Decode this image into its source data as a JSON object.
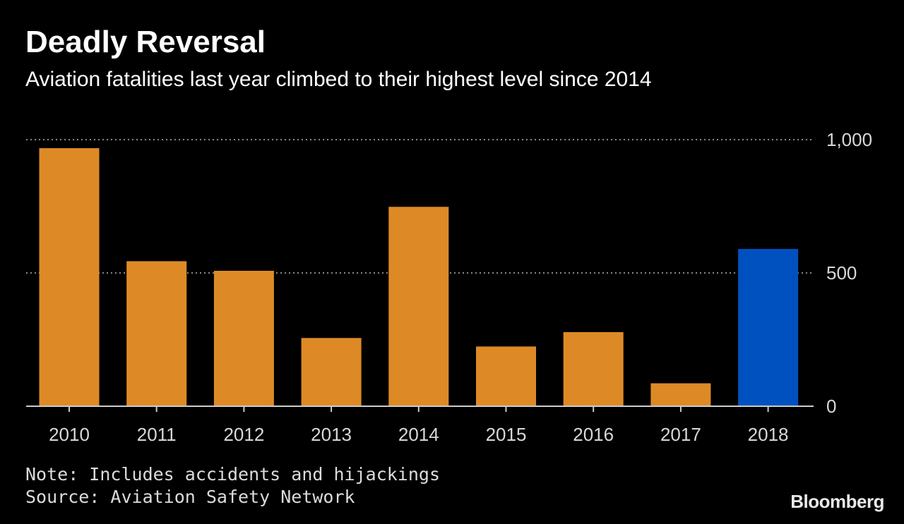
{
  "chart_data": {
    "type": "bar",
    "title": "Deadly Reversal",
    "subtitle": "Aviation fatalities last year climbed to their highest level since 2014",
    "categories": [
      "2010",
      "2011",
      "2012",
      "2013",
      "2014",
      "2015",
      "2016",
      "2017",
      "2018"
    ],
    "values": [
      968,
      544,
      508,
      256,
      748,
      224,
      278,
      86,
      590
    ],
    "ylim": [
      0,
      1000
    ],
    "yticks": [
      0,
      500,
      1000
    ],
    "ytick_labels": [
      "0",
      "500",
      "1,000"
    ],
    "grid": "horizontal dotted",
    "y_axis_side": "right",
    "colors": {
      "default_bar": "#DD8A26",
      "highlight_bar": "#0051C0",
      "highlight_category": "2018",
      "grid": "#8a8a8a",
      "axis": "#cccccc"
    }
  },
  "footer": {
    "note": "Note: Includes accidents and hijackings",
    "source": "Source: Aviation Safety Network",
    "brand": "Bloomberg"
  }
}
